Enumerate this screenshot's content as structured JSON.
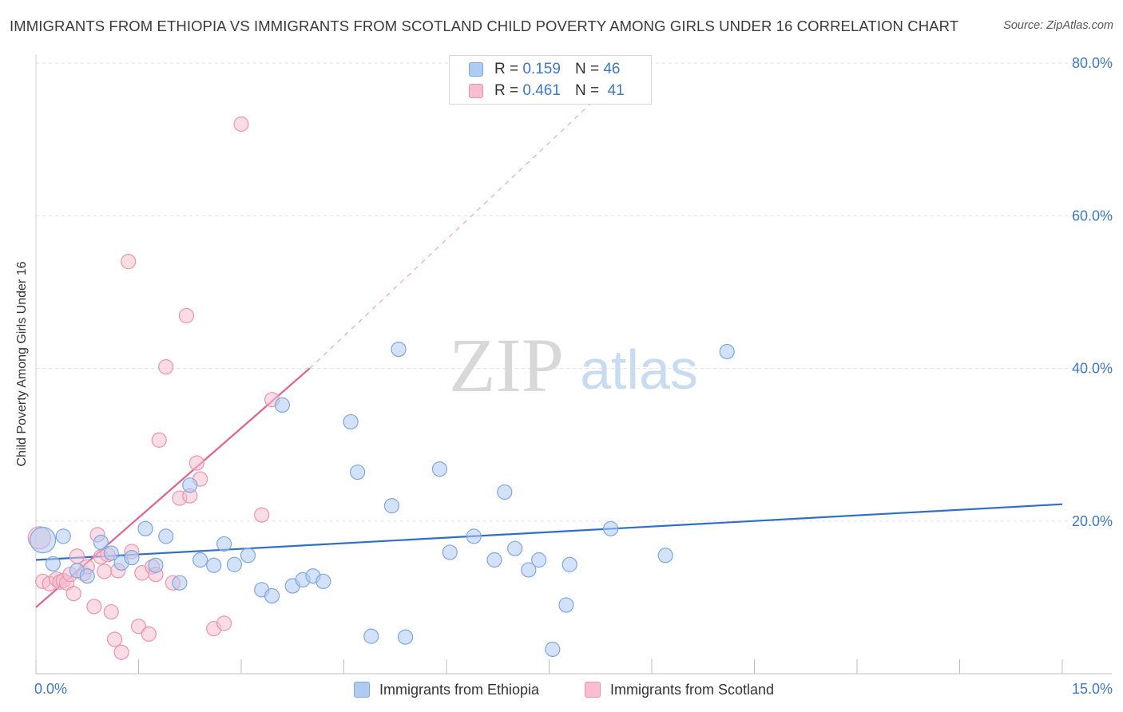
{
  "title": "IMMIGRANTS FROM ETHIOPIA VS IMMIGRANTS FROM SCOTLAND CHILD POVERTY AMONG GIRLS UNDER 16 CORRELATION CHART",
  "source": "Source: ZipAtlas.com",
  "watermark": {
    "zip": "ZIP",
    "atlas": "atlas"
  },
  "legend": {
    "rows": [
      {
        "r_label": "R =",
        "r_value": "0.159",
        "n_label": "N =",
        "n_value": "46"
      },
      {
        "r_label": "R =",
        "r_value": "0.461",
        "n_label": "N =",
        "n_value": "41"
      }
    ]
  },
  "colors": {
    "blue_fill": "#aecbf2",
    "blue_stroke": "#7da7e0",
    "blue_line": "#2e6fcc",
    "pink_fill": "#f6bfd0",
    "pink_stroke": "#ec93b1",
    "pink_line": "#e0628e",
    "tick_label": "#3e78c8",
    "grid": "#e2e2e2"
  },
  "chart_data": {
    "type": "scatter",
    "title": "IMMIGRANTS FROM ETHIOPIA VS IMMIGRANTS FROM SCOTLAND CHILD POVERTY AMONG GIRLS UNDER 16 CORRELATION CHART",
    "xlabel": "",
    "ylabel": "Child Poverty Among Girls Under 16",
    "xlim": [
      0,
      15
    ],
    "ylim": [
      0,
      80
    ],
    "x_tick_labels": [
      "0.0%",
      "15.0%"
    ],
    "y_ticks": [
      20,
      40,
      60,
      80
    ],
    "y_tick_labels": [
      "20.0%",
      "40.0%",
      "60.0%",
      "80.0%"
    ],
    "grid": true,
    "series": [
      {
        "name": "Immigrants from Ethiopia",
        "color": "blue",
        "r": 0.159,
        "n": 46,
        "trend": {
          "x": [
            0,
            15
          ],
          "y": [
            14.9,
            22.2
          ]
        },
        "points": [
          [
            0.1,
            17.5,
            16
          ],
          [
            0.25,
            14.4,
            9
          ],
          [
            0.4,
            18.0,
            9
          ],
          [
            0.6,
            13.5,
            9
          ],
          [
            0.75,
            12.8,
            9
          ],
          [
            0.95,
            17.2,
            9
          ],
          [
            1.1,
            15.8,
            9
          ],
          [
            1.25,
            14.5,
            9
          ],
          [
            1.4,
            15.2,
            9
          ],
          [
            1.6,
            19.0,
            9
          ],
          [
            1.75,
            14.2,
            9
          ],
          [
            1.9,
            18.0,
            9
          ],
          [
            2.1,
            11.9,
            9
          ],
          [
            2.25,
            24.7,
            9
          ],
          [
            2.4,
            14.9,
            9
          ],
          [
            2.6,
            14.2,
            9
          ],
          [
            2.75,
            17.0,
            9
          ],
          [
            2.9,
            14.3,
            9
          ],
          [
            3.1,
            15.5,
            9
          ],
          [
            3.3,
            11.0,
            9
          ],
          [
            3.45,
            10.2,
            9
          ],
          [
            3.6,
            35.2,
            9
          ],
          [
            3.75,
            11.5,
            9
          ],
          [
            3.9,
            12.3,
            9
          ],
          [
            4.05,
            12.8,
            9
          ],
          [
            4.2,
            12.1,
            9
          ],
          [
            4.6,
            33.0,
            9
          ],
          [
            4.7,
            26.4,
            9
          ],
          [
            4.9,
            4.9,
            9
          ],
          [
            5.2,
            22.0,
            9
          ],
          [
            5.3,
            42.5,
            9
          ],
          [
            5.4,
            4.8,
            9
          ],
          [
            5.9,
            26.8,
            9
          ],
          [
            6.05,
            15.9,
            9
          ],
          [
            6.4,
            18.0,
            9
          ],
          [
            6.7,
            14.9,
            9
          ],
          [
            6.85,
            23.8,
            9
          ],
          [
            7.0,
            16.4,
            9
          ],
          [
            7.2,
            13.6,
            9
          ],
          [
            7.35,
            14.9,
            9
          ],
          [
            7.55,
            3.2,
            9
          ],
          [
            7.75,
            9.0,
            9
          ],
          [
            7.8,
            14.3,
            9
          ],
          [
            8.4,
            19.0,
            9
          ],
          [
            9.2,
            15.5,
            9
          ],
          [
            10.1,
            42.2,
            9
          ]
        ]
      },
      {
        "name": "Immigrants from Scotland",
        "color": "pink",
        "r": 0.461,
        "n": 41,
        "trend": {
          "x": [
            0,
            4.0
          ],
          "y": [
            8.7,
            40.0
          ]
        },
        "trend_dashed": {
          "x": [
            4.0,
            8.5
          ],
          "y": [
            40.0,
            78.0
          ]
        },
        "points": [
          [
            0.05,
            17.8,
            14
          ],
          [
            0.1,
            12.1,
            9
          ],
          [
            0.2,
            11.8,
            9
          ],
          [
            0.3,
            12.4,
            9
          ],
          [
            0.35,
            12.0,
            9
          ],
          [
            0.4,
            12.2,
            9
          ],
          [
            0.45,
            11.9,
            9
          ],
          [
            0.5,
            13.0,
            9
          ],
          [
            0.55,
            10.5,
            9
          ],
          [
            0.6,
            15.4,
            9
          ],
          [
            0.7,
            13.1,
            9
          ],
          [
            0.75,
            14.0,
            9
          ],
          [
            0.85,
            8.8,
            9
          ],
          [
            0.9,
            18.2,
            9
          ],
          [
            0.95,
            15.3,
            9
          ],
          [
            1.0,
            13.4,
            9
          ],
          [
            1.05,
            15.6,
            9
          ],
          [
            1.1,
            8.1,
            9
          ],
          [
            1.15,
            4.5,
            9
          ],
          [
            1.25,
            2.8,
            9
          ],
          [
            1.35,
            54.0,
            9
          ],
          [
            1.4,
            16.0,
            9
          ],
          [
            1.5,
            6.2,
            9
          ],
          [
            1.55,
            13.2,
            9
          ],
          [
            1.65,
            5.2,
            9
          ],
          [
            1.7,
            14.0,
            9
          ],
          [
            1.75,
            13.0,
            9
          ],
          [
            1.8,
            30.6,
            9
          ],
          [
            1.9,
            40.2,
            9
          ],
          [
            2.0,
            11.9,
            9
          ],
          [
            2.1,
            23.0,
            9
          ],
          [
            2.2,
            46.9,
            9
          ],
          [
            2.25,
            23.3,
            9
          ],
          [
            2.35,
            27.6,
            9
          ],
          [
            2.4,
            25.5,
            9
          ],
          [
            2.6,
            5.9,
            9
          ],
          [
            2.75,
            6.6,
            9
          ],
          [
            3.0,
            72.0,
            9
          ],
          [
            3.3,
            20.8,
            9
          ],
          [
            3.45,
            35.9,
            9
          ],
          [
            1.2,
            13.5,
            9
          ]
        ]
      }
    ]
  },
  "bottom_legend": [
    "Immigrants from Ethiopia",
    "Immigrants from Scotland"
  ]
}
